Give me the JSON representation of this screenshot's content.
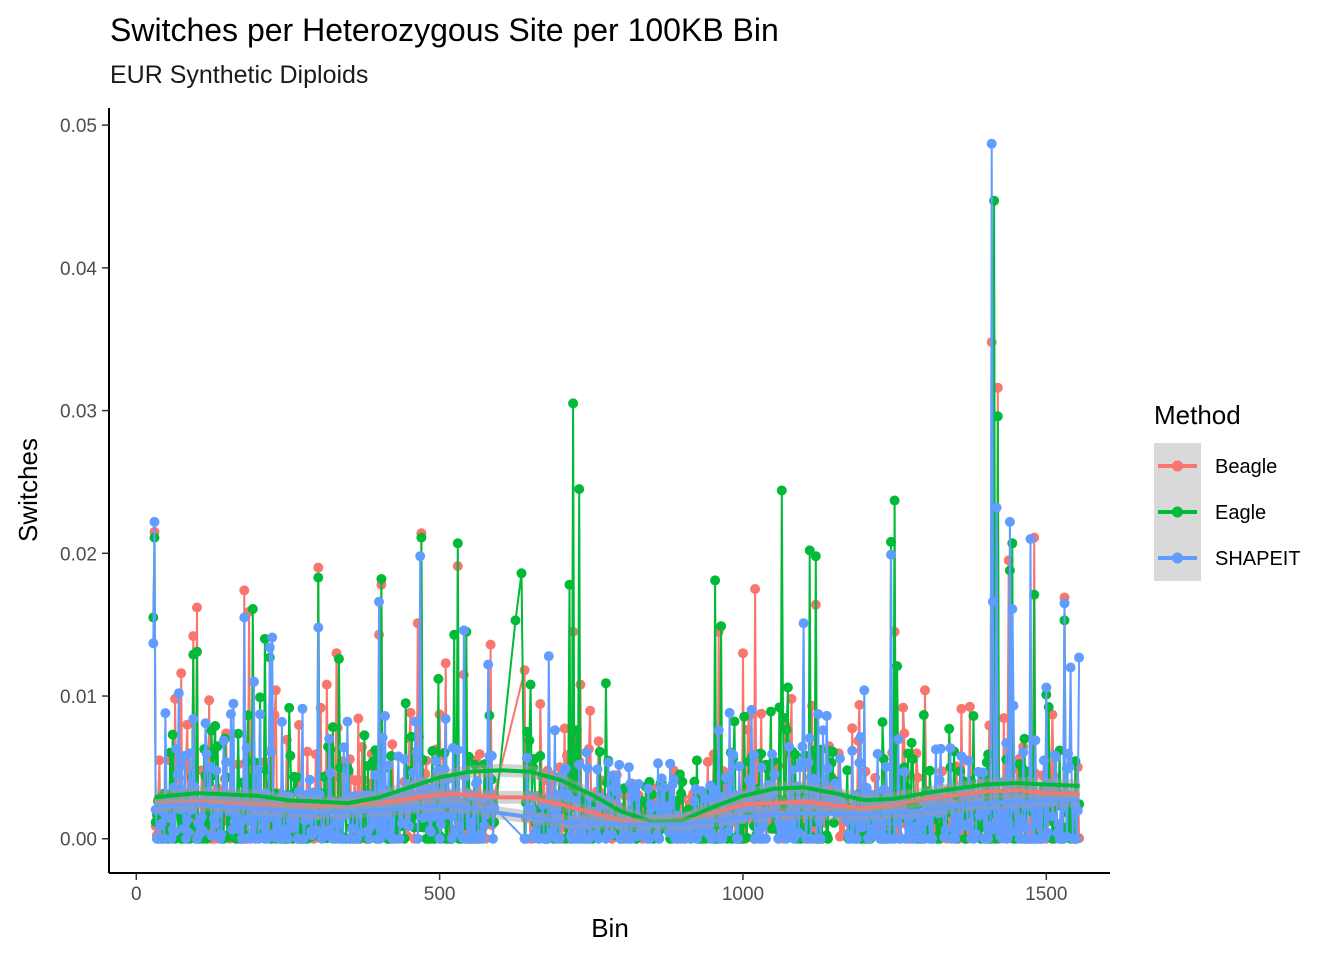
{
  "chart_data": {
    "type": "line",
    "title": "Switches per Heterozygous Site per 100KB Bin",
    "subtitle": "EUR Synthetic Diploids",
    "xlabel": "Bin",
    "ylabel": "Switches",
    "xlim": [
      -45,
      1605
    ],
    "ylim": [
      -0.0024,
      0.0512
    ],
    "x_ticks": [
      0,
      500,
      1000,
      1500
    ],
    "x_tick_labels": [
      "0",
      "500",
      "1000",
      "1500"
    ],
    "y_ticks": [
      0,
      0.01,
      0.02,
      0.03,
      0.04,
      0.05
    ],
    "y_tick_labels": [
      "0.00",
      "0.01",
      "0.02",
      "0.03",
      "0.04",
      "0.05"
    ],
    "grid": false,
    "legend": {
      "title": "Method",
      "position": "right"
    },
    "x_range": [
      30,
      1555
    ],
    "gap_range": [
      590,
      640
    ],
    "series": [
      {
        "name": "Beagle",
        "color": "#F8766D",
        "peaks": [
          [
            30,
            0.0215
          ],
          [
            38,
            0.0055
          ],
          [
            65,
            0.0098
          ],
          [
            75,
            0.0116
          ],
          [
            95,
            0.0142
          ],
          [
            100,
            0.0162
          ],
          [
            120,
            0.0097
          ],
          [
            178,
            0.0174
          ],
          [
            186,
            0.0159
          ],
          [
            230,
            0.0104
          ],
          [
            300,
            0.019
          ],
          [
            315,
            0.0108
          ],
          [
            330,
            0.013
          ],
          [
            400,
            0.0143
          ],
          [
            405,
            0.0178
          ],
          [
            465,
            0.0151
          ],
          [
            470,
            0.0214
          ],
          [
            510,
            0.0123
          ],
          [
            530,
            0.0191
          ],
          [
            540,
            0.0115
          ],
          [
            585,
            0.0136
          ],
          [
            640,
            0.0118
          ],
          [
            720,
            0.0145
          ],
          [
            732,
            0.0108
          ],
          [
            960,
            0.0145
          ],
          [
            1000,
            0.013
          ],
          [
            1010,
            0.0086
          ],
          [
            1020,
            0.0175
          ],
          [
            1080,
            0.0098
          ],
          [
            1120,
            0.0164
          ],
          [
            1250,
            0.0145
          ],
          [
            1300,
            0.0104
          ],
          [
            1410,
            0.0348
          ],
          [
            1420,
            0.0316
          ],
          [
            1438,
            0.0195
          ],
          [
            1480,
            0.0211
          ],
          [
            1510,
            0.0087
          ],
          [
            1530,
            0.0169
          ]
        ],
        "smooth": [
          [
            30,
            0.0025
          ],
          [
            100,
            0.0026
          ],
          [
            200,
            0.0024
          ],
          [
            300,
            0.0023
          ],
          [
            400,
            0.0025
          ],
          [
            500,
            0.0031
          ],
          [
            550,
            0.0031
          ],
          [
            600,
            0.0029
          ],
          [
            650,
            0.0029
          ],
          [
            700,
            0.0024
          ],
          [
            800,
            0.0013
          ],
          [
            870,
            0.0012
          ],
          [
            950,
            0.0018
          ],
          [
            1000,
            0.0024
          ],
          [
            1100,
            0.0026
          ],
          [
            1200,
            0.0021
          ],
          [
            1250,
            0.0024
          ],
          [
            1300,
            0.0028
          ],
          [
            1400,
            0.0033
          ],
          [
            1450,
            0.0034
          ],
          [
            1500,
            0.0032
          ],
          [
            1555,
            0.0031
          ]
        ]
      },
      {
        "name": "Eagle",
        "color": "#00BA38",
        "peaks": [
          [
            30,
            0.0211
          ],
          [
            28,
            0.0155
          ],
          [
            60,
            0.0073
          ],
          [
            95,
            0.0129
          ],
          [
            100,
            0.0131
          ],
          [
            130,
            0.0079
          ],
          [
            192,
            0.0161
          ],
          [
            205,
            0.0099
          ],
          [
            213,
            0.014
          ],
          [
            220,
            0.0127
          ],
          [
            300,
            0.0183
          ],
          [
            335,
            0.0126
          ],
          [
            405,
            0.0182
          ],
          [
            420,
            0.0058
          ],
          [
            445,
            0.0095
          ],
          [
            470,
            0.0211
          ],
          [
            498,
            0.0112
          ],
          [
            525,
            0.0143
          ],
          [
            530,
            0.0207
          ],
          [
            545,
            0.0145
          ],
          [
            625,
            0.0153
          ],
          [
            635,
            0.0186
          ],
          [
            650,
            0.0108
          ],
          [
            715,
            0.0178
          ],
          [
            720,
            0.0305
          ],
          [
            730,
            0.0245
          ],
          [
            775,
            0.0109
          ],
          [
            955,
            0.0181
          ],
          [
            965,
            0.0149
          ],
          [
            1060,
            0.0092
          ],
          [
            1065,
            0.0244
          ],
          [
            1075,
            0.0106
          ],
          [
            1110,
            0.0202
          ],
          [
            1120,
            0.0198
          ],
          [
            1250,
            0.0237
          ],
          [
            1245,
            0.0208
          ],
          [
            1255,
            0.0121
          ],
          [
            1340,
            0.0077
          ],
          [
            1380,
            0.0086
          ],
          [
            1415,
            0.0447
          ],
          [
            1420,
            0.0296
          ],
          [
            1440,
            0.0188
          ],
          [
            1445,
            0.0207
          ],
          [
            1480,
            0.0171
          ],
          [
            1500,
            0.0101
          ],
          [
            1530,
            0.0153
          ]
        ],
        "smooth": [
          [
            30,
            0.0029
          ],
          [
            100,
            0.0032
          ],
          [
            200,
            0.003
          ],
          [
            250,
            0.0027
          ],
          [
            300,
            0.0026
          ],
          [
            350,
            0.0025
          ],
          [
            400,
            0.0029
          ],
          [
            450,
            0.0036
          ],
          [
            500,
            0.0043
          ],
          [
            550,
            0.0047
          ],
          [
            600,
            0.0048
          ],
          [
            650,
            0.0047
          ],
          [
            700,
            0.0041
          ],
          [
            750,
            0.0031
          ],
          [
            800,
            0.0019
          ],
          [
            850,
            0.0012
          ],
          [
            900,
            0.0013
          ],
          [
            950,
            0.0022
          ],
          [
            1000,
            0.003
          ],
          [
            1050,
            0.0035
          ],
          [
            1100,
            0.0036
          ],
          [
            1150,
            0.0032
          ],
          [
            1200,
            0.0027
          ],
          [
            1250,
            0.0028
          ],
          [
            1300,
            0.0032
          ],
          [
            1350,
            0.0035
          ],
          [
            1400,
            0.0038
          ],
          [
            1450,
            0.0039
          ],
          [
            1500,
            0.0038
          ],
          [
            1555,
            0.0037
          ]
        ]
      },
      {
        "name": "SHAPEIT",
        "color": "#619CFF",
        "peaks": [
          [
            30,
            0.0222
          ],
          [
            28,
            0.0137
          ],
          [
            48,
            0.0088
          ],
          [
            70,
            0.0102
          ],
          [
            95,
            0.0084
          ],
          [
            178,
            0.0155
          ],
          [
            195,
            0.011
          ],
          [
            220,
            0.0134
          ],
          [
            225,
            0.0141
          ],
          [
            300,
            0.0148
          ],
          [
            400,
            0.0166
          ],
          [
            410,
            0.0086
          ],
          [
            468,
            0.0198
          ],
          [
            510,
            0.0084
          ],
          [
            540,
            0.0146
          ],
          [
            580,
            0.0122
          ],
          [
            680,
            0.0128
          ],
          [
            690,
            0.0076
          ],
          [
            1100,
            0.0151
          ],
          [
            1200,
            0.0104
          ],
          [
            1245,
            0.0199
          ],
          [
            1410,
            0.0487
          ],
          [
            1413,
            0.0166
          ],
          [
            1418,
            0.0232
          ],
          [
            1440,
            0.0222
          ],
          [
            1445,
            0.0161
          ],
          [
            1475,
            0.021
          ],
          [
            1500,
            0.0106
          ],
          [
            1530,
            0.0165
          ],
          [
            1540,
            0.012
          ],
          [
            1555,
            0.0127
          ]
        ],
        "smooth": [
          [
            30,
            0.0023
          ],
          [
            100,
            0.0024
          ],
          [
            200,
            0.0021
          ],
          [
            300,
            0.0018
          ],
          [
            400,
            0.002
          ],
          [
            500,
            0.0023
          ],
          [
            550,
            0.0022
          ],
          [
            600,
            0.0018
          ],
          [
            650,
            0.0015
          ],
          [
            700,
            0.0012
          ],
          [
            800,
            0.001
          ],
          [
            900,
            0.001
          ],
          [
            1000,
            0.0015
          ],
          [
            1100,
            0.0018
          ],
          [
            1200,
            0.0017
          ],
          [
            1300,
            0.002
          ],
          [
            1400,
            0.0025
          ],
          [
            1500,
            0.0027
          ],
          [
            1555,
            0.0027
          ]
        ]
      }
    ]
  }
}
